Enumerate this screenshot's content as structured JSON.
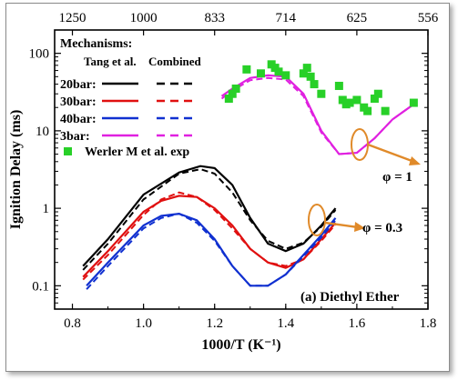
{
  "chart_data": {
    "type": "line",
    "title": "",
    "xlabel": "1000/T (K⁻¹)",
    "ylabel": "Ignition Delay (ms)",
    "xlim": [
      0.75,
      1.8
    ],
    "ylim": [
      0.05,
      200
    ],
    "yscale": "log",
    "x_ticks": [
      "0.8",
      "1.0",
      "1.2",
      "1.4",
      "1.6",
      "1.8"
    ],
    "y_ticks": [
      "0.1",
      "1",
      "10",
      "100"
    ],
    "top_axis": {
      "label_positions_x": [
        0.8,
        1.0,
        1.2,
        1.4,
        1.6,
        1.8
      ],
      "labels": [
        "1250",
        "1000",
        "833",
        "714",
        "625",
        "556"
      ]
    },
    "legend": {
      "placement": "top-left",
      "header": "Mechanisms:",
      "col1": "Tang et al.",
      "col2": "Combined",
      "scatter_label": "Werler M et al. exp"
    },
    "series": [
      {
        "name": "20bar",
        "color": "#000000",
        "tang": {
          "x": [
            0.83,
            0.9,
            1.0,
            1.1,
            1.16,
            1.2,
            1.25,
            1.3,
            1.35,
            1.4,
            1.45,
            1.5,
            1.54
          ],
          "y": [
            0.18,
            0.4,
            1.5,
            2.9,
            3.5,
            3.3,
            2.0,
            0.75,
            0.35,
            0.28,
            0.35,
            0.6,
            1.0
          ]
        },
        "combined": {
          "x": [
            0.83,
            0.9,
            1.0,
            1.1,
            1.16,
            1.2,
            1.25,
            1.3,
            1.35,
            1.4,
            1.45,
            1.5,
            1.54
          ],
          "y": [
            0.16,
            0.35,
            1.3,
            2.8,
            3.2,
            2.8,
            1.6,
            0.7,
            0.38,
            0.3,
            0.36,
            0.58,
            0.95
          ]
        }
      },
      {
        "name": "30bar",
        "color": "#e01010",
        "tang": {
          "x": [
            0.83,
            0.9,
            1.0,
            1.05,
            1.1,
            1.15,
            1.2,
            1.25,
            1.3,
            1.35,
            1.4,
            1.45,
            1.5,
            1.54
          ],
          "y": [
            0.13,
            0.28,
            0.9,
            1.25,
            1.45,
            1.4,
            1.0,
            0.6,
            0.3,
            0.2,
            0.17,
            0.22,
            0.4,
            0.65
          ]
        },
        "combined": {
          "x": [
            0.83,
            0.9,
            1.0,
            1.05,
            1.1,
            1.15,
            1.2,
            1.25,
            1.3,
            1.35,
            1.4,
            1.45,
            1.5,
            1.54
          ],
          "y": [
            0.12,
            0.25,
            0.82,
            1.3,
            1.6,
            1.4,
            0.95,
            0.55,
            0.3,
            0.2,
            0.18,
            0.22,
            0.38,
            0.62
          ]
        }
      },
      {
        "name": "40bar",
        "color": "#1030d0",
        "tang": {
          "x": [
            0.84,
            0.9,
            1.0,
            1.05,
            1.1,
            1.15,
            1.2,
            1.25,
            1.3,
            1.35,
            1.4,
            1.45,
            1.5,
            1.54
          ],
          "y": [
            0.1,
            0.2,
            0.6,
            0.8,
            0.85,
            0.7,
            0.4,
            0.18,
            0.1,
            0.1,
            0.14,
            0.25,
            0.45,
            0.75
          ]
        },
        "combined": {
          "x": [
            0.84,
            0.9,
            1.0,
            1.05,
            1.1,
            1.15,
            1.2,
            1.25,
            1.3,
            1.35,
            1.4,
            1.45,
            1.5,
            1.54
          ],
          "y": [
            0.09,
            0.18,
            0.55,
            0.75,
            0.85,
            0.65,
            0.38,
            0.18,
            0.1,
            0.1,
            0.14,
            0.24,
            0.42,
            0.7
          ]
        }
      },
      {
        "name": "3bar",
        "color": "#e020e0",
        "tang": {
          "x": [
            1.22,
            1.25,
            1.3,
            1.35,
            1.4,
            1.45,
            1.5,
            1.55,
            1.6,
            1.65,
            1.7,
            1.76
          ],
          "y": [
            28,
            35,
            48,
            52,
            50,
            30,
            10,
            5,
            5.2,
            8,
            14,
            22
          ]
        },
        "combined": {
          "x": [
            1.22,
            1.25,
            1.3,
            1.35,
            1.4,
            1.45,
            1.5,
            1.55,
            1.6,
            1.65,
            1.7,
            1.76
          ],
          "y": [
            26,
            33,
            45,
            48,
            46,
            28,
            9.5,
            5,
            5.2,
            8,
            14,
            22
          ]
        }
      }
    ],
    "experimental": {
      "name": "Werler M et al. exp",
      "color": "#28d028",
      "x": [
        1.24,
        1.25,
        1.26,
        1.29,
        1.33,
        1.36,
        1.37,
        1.38,
        1.4,
        1.45,
        1.46,
        1.47,
        1.48,
        1.5,
        1.55,
        1.56,
        1.57,
        1.58,
        1.6,
        1.62,
        1.63,
        1.65,
        1.66,
        1.68,
        1.76
      ],
      "y": [
        26,
        30,
        35,
        62,
        55,
        72,
        65,
        58,
        52,
        55,
        65,
        50,
        40,
        30,
        38,
        25,
        22,
        23,
        25,
        20,
        18,
        26,
        30,
        18,
        23
      ]
    },
    "annotations": [
      {
        "text": "φ = 1"
      },
      {
        "text": "φ = 0.3"
      },
      {
        "text": "(a) Diethyl Ether"
      }
    ]
  }
}
